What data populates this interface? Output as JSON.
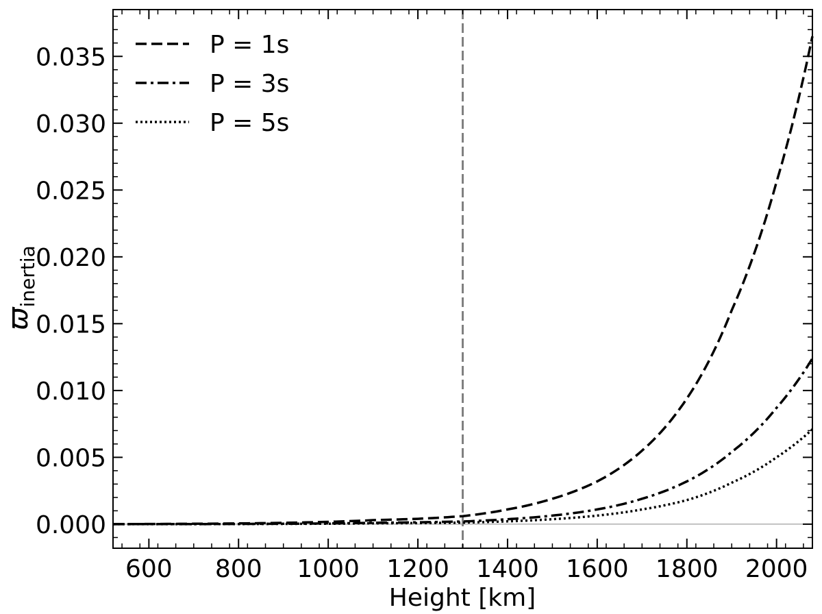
{
  "chart_data": {
    "type": "line",
    "xlabel": "Height [km]",
    "ylabel_main": "ϖ",
    "ylabel_sub": "inertia",
    "xlim": [
      520,
      2080
    ],
    "ylim": [
      -0.0018,
      0.0385
    ],
    "x_ticks": [
      600,
      800,
      1000,
      1200,
      1400,
      1600,
      1800,
      2000
    ],
    "x_tick_labels": [
      "600",
      "800",
      "1000",
      "1200",
      "1400",
      "1600",
      "1800",
      "2000"
    ],
    "y_ticks": [
      0.0,
      0.005,
      0.01,
      0.015,
      0.02,
      0.025,
      0.03,
      0.035
    ],
    "y_tick_labels": [
      "0.000",
      "0.005",
      "0.010",
      "0.015",
      "0.020",
      "0.025",
      "0.030",
      "0.035"
    ],
    "vertical_line_x": 1300,
    "horizontal_line_y": 0.0,
    "legend_position": "top-left",
    "series": [
      {
        "name": "P = 1s",
        "style": "dashed",
        "x": [
          520,
          700,
          900,
          1100,
          1200,
          1300,
          1400,
          1500,
          1600,
          1700,
          1800,
          1900,
          2000,
          2080
        ],
        "y": [
          0.0,
          3e-05,
          0.0001,
          0.0003,
          0.0004,
          0.0006,
          0.0011,
          0.0019,
          0.0032,
          0.0055,
          0.0094,
          0.016,
          0.0256,
          0.0365
        ]
      },
      {
        "name": "P = 3s",
        "style": "dashdot",
        "x": [
          520,
          700,
          900,
          1100,
          1200,
          1300,
          1400,
          1500,
          1600,
          1700,
          1800,
          1900,
          2000,
          2080
        ],
        "y": [
          0.0,
          1e-05,
          3e-05,
          0.0001,
          0.00014,
          0.0002,
          0.00037,
          0.00064,
          0.0011,
          0.0019,
          0.0032,
          0.0054,
          0.0087,
          0.0124
        ]
      },
      {
        "name": "P = 5s",
        "style": "dotted",
        "x": [
          520,
          700,
          900,
          1100,
          1200,
          1300,
          1400,
          1500,
          1600,
          1700,
          1800,
          1900,
          2000,
          2080
        ],
        "y": [
          0.0,
          0.0,
          2e-05,
          6e-05,
          8e-05,
          0.00012,
          0.00021,
          0.00037,
          0.00064,
          0.0011,
          0.0018,
          0.0031,
          0.005,
          0.0071
        ]
      }
    ]
  }
}
